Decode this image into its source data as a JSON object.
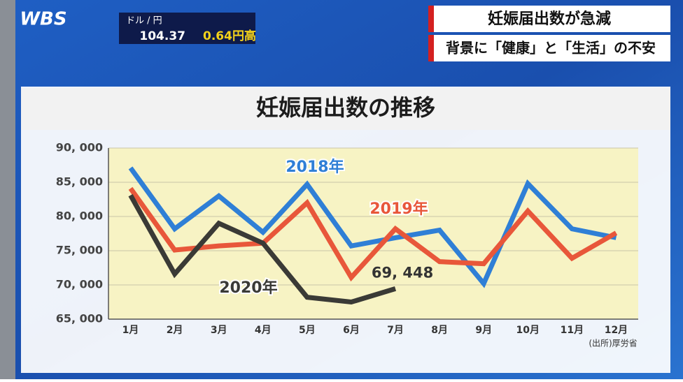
{
  "header": {
    "logo": "WBS",
    "rate_label": "ドル / 円",
    "rate_value": "104.37",
    "rate_change": "0.64円高",
    "headline": "妊娠届出数が急減",
    "subheadline": "背景に「健康」と「生活」の不安"
  },
  "source": "(出所)厚労省",
  "chart_data": {
    "type": "line",
    "title": "妊娠届出数の推移",
    "categories": [
      "1月",
      "2月",
      "3月",
      "4月",
      "5月",
      "6月",
      "7月",
      "8月",
      "9月",
      "10月",
      "11月",
      "12月"
    ],
    "series": [
      {
        "name": "2018年",
        "color": "#2f7fd6",
        "values": [
          87100,
          78200,
          83000,
          77700,
          84700,
          75700,
          76900,
          78000,
          70200,
          84800,
          78200,
          76900
        ]
      },
      {
        "name": "2019年",
        "color": "#e8573a",
        "values": [
          84100,
          75100,
          75700,
          76100,
          82000,
          71100,
          78200,
          73400,
          73100,
          80800,
          73900,
          77600
        ]
      },
      {
        "name": "2020年",
        "color": "#3a3a36",
        "values": [
          83100,
          71600,
          79000,
          76100,
          68200,
          67500,
          69448,
          null,
          null,
          null,
          null,
          null
        ],
        "value_labels": [
          null,
          null,
          null,
          null,
          null,
          null,
          "69, 448",
          null,
          null,
          null,
          null,
          null
        ]
      }
    ],
    "ylim": [
      65000,
      90000
    ],
    "yticks": [
      {
        "value": 65000,
        "label": "65, 000"
      },
      {
        "value": 70000,
        "label": "70, 000"
      },
      {
        "value": 75000,
        "label": "75, 000"
      },
      {
        "value": 80000,
        "label": "80, 000"
      },
      {
        "value": 85000,
        "label": "85, 000"
      },
      {
        "value": 90000,
        "label": "90, 000"
      }
    ],
    "grid": true
  }
}
